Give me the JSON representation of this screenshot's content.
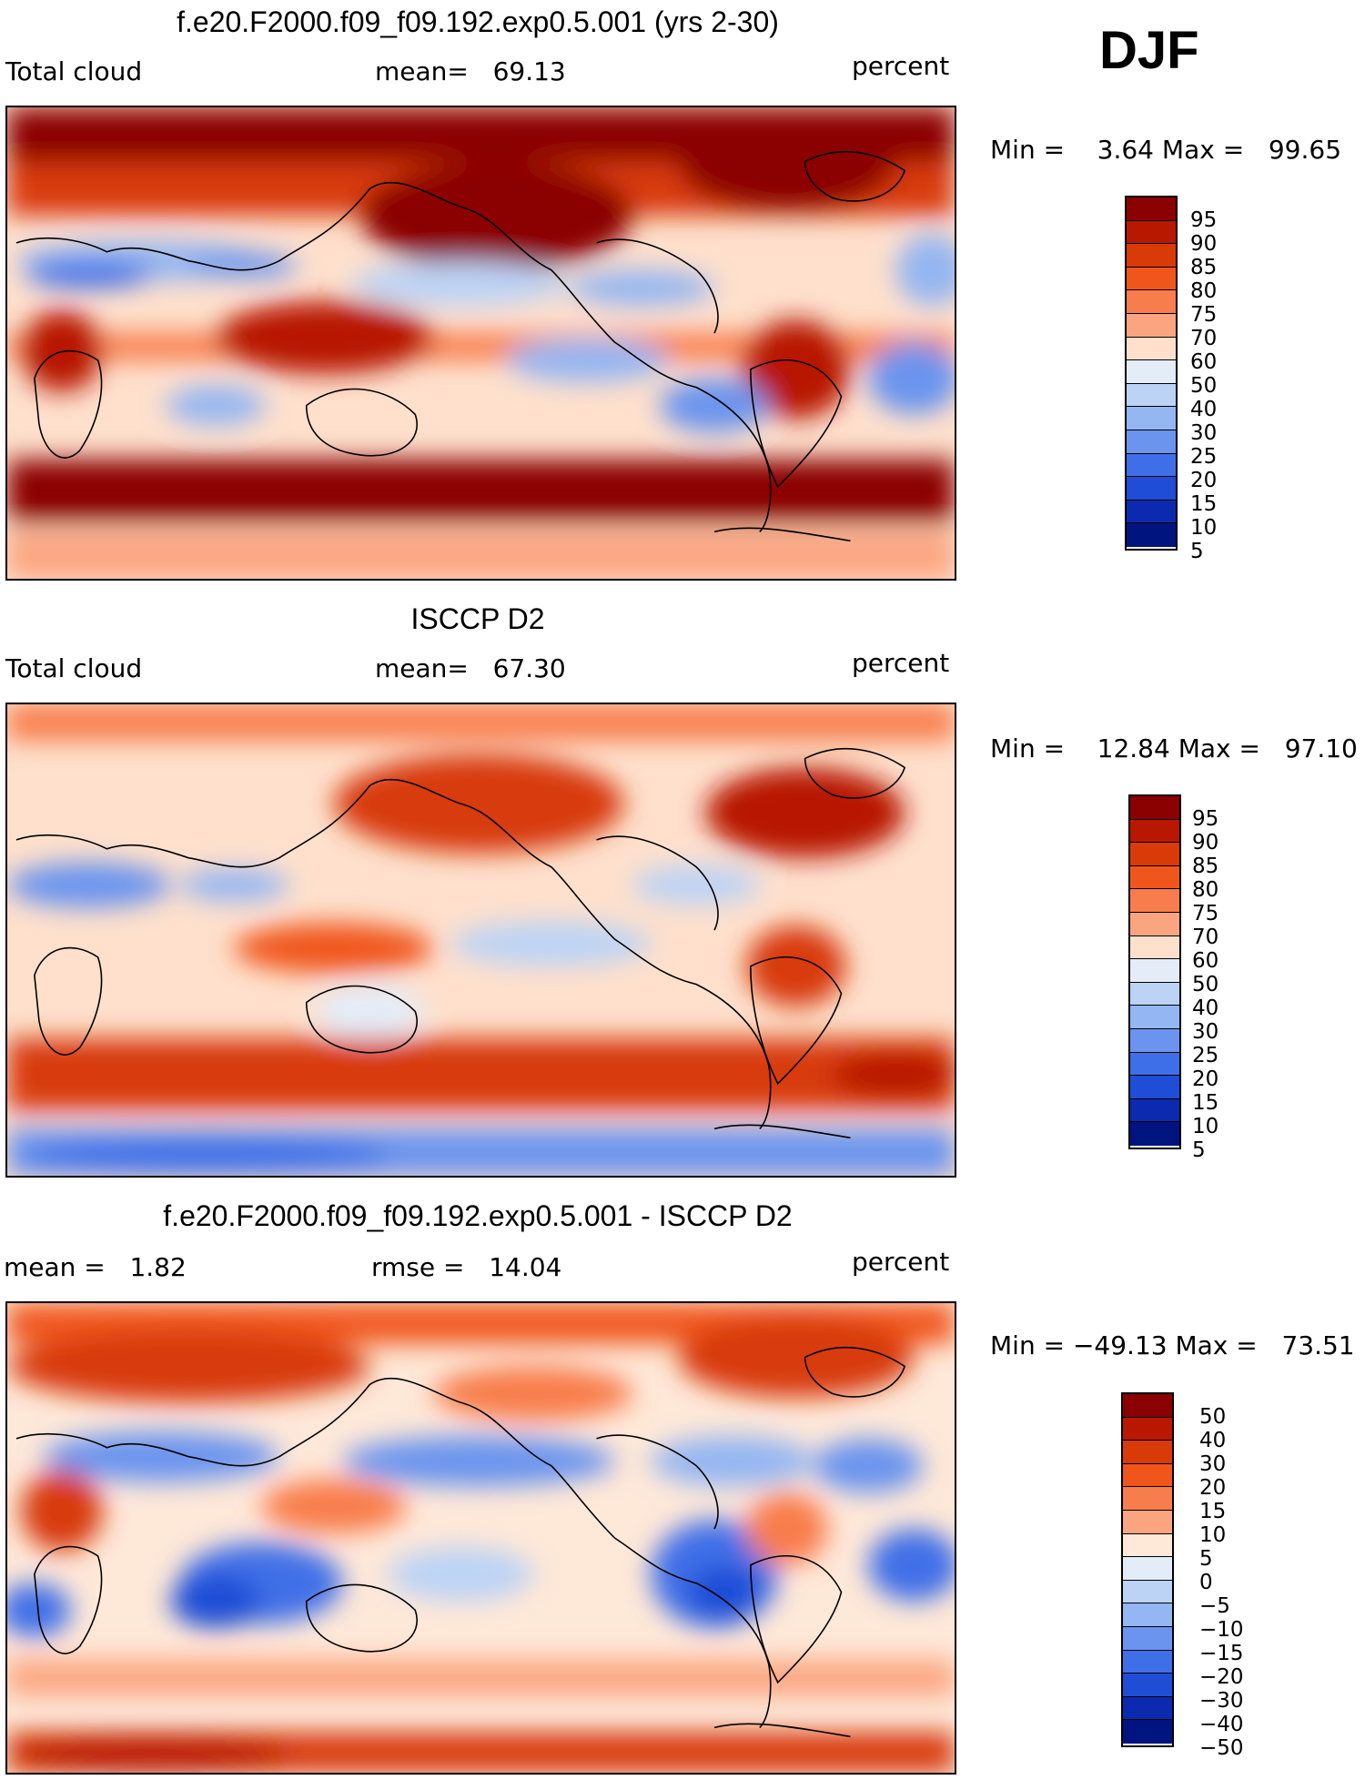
{
  "season": "DJF",
  "panels": [
    {
      "title": "f.e20.F2000.f09_f09.192.exp0.5.001 (yrs 2-30)",
      "left": "Total cloud",
      "center_label": "mean=",
      "center_value": "69.13",
      "units": "percent",
      "min_label": "Min =",
      "min_value": "3.64",
      "max_label": "Max =",
      "max_value": "99.65",
      "colorbar": {
        "colors": [
          "#8b0000",
          "#b81800",
          "#d83a08",
          "#f0561c",
          "#f87d4c",
          "#fba580",
          "#fee0cc",
          "#e4ecf8",
          "#bcd3f5",
          "#94b6f2",
          "#6a94ee",
          "#3f6fe8",
          "#1f4dd6",
          "#0c2ab0",
          "#001480"
        ],
        "labels": [
          "95",
          "90",
          "85",
          "80",
          "75",
          "70",
          "60",
          "50",
          "40",
          "30",
          "25",
          "20",
          "15",
          "10",
          "5"
        ]
      }
    },
    {
      "title": "ISCCP D2",
      "left": "Total cloud",
      "center_label": "mean=",
      "center_value": "67.30",
      "units": "percent",
      "min_label": "Min =",
      "min_value": "12.84",
      "max_label": "Max =",
      "max_value": "97.10",
      "colorbar": {
        "colors": [
          "#8b0000",
          "#b81800",
          "#d83a08",
          "#f0561c",
          "#f87d4c",
          "#fba580",
          "#fee0cc",
          "#e4ecf8",
          "#bcd3f5",
          "#94b6f2",
          "#6a94ee",
          "#3f6fe8",
          "#1f4dd6",
          "#0c2ab0",
          "#001480"
        ],
        "labels": [
          "95",
          "90",
          "85",
          "80",
          "75",
          "70",
          "60",
          "50",
          "40",
          "30",
          "25",
          "20",
          "15",
          "10",
          "5"
        ]
      }
    },
    {
      "title": "f.e20.F2000.f09_f09.192.exp0.5.001 - ISCCP D2",
      "left": "mean =   1.82",
      "center_label": "rmse =",
      "center_value": "14.04",
      "units": "percent",
      "min_label": "Min =",
      "min_value": "−49.13",
      "max_label": "Max =",
      "max_value": "73.51",
      "colorbar": {
        "colors": [
          "#8b0000",
          "#b81800",
          "#d83a08",
          "#f0561c",
          "#f87d4c",
          "#fba580",
          "#fee8d8",
          "#e4ecf8",
          "#bcd3f5",
          "#94b6f2",
          "#6a94ee",
          "#3f6fe8",
          "#1f4dd6",
          "#0c2ab0",
          "#001480"
        ],
        "labels": [
          "50",
          "40",
          "30",
          "20",
          "15",
          "10",
          "5",
          "0",
          "−5",
          "−10",
          "−15",
          "−20",
          "−30",
          "−40",
          "−50"
        ]
      }
    }
  ]
}
